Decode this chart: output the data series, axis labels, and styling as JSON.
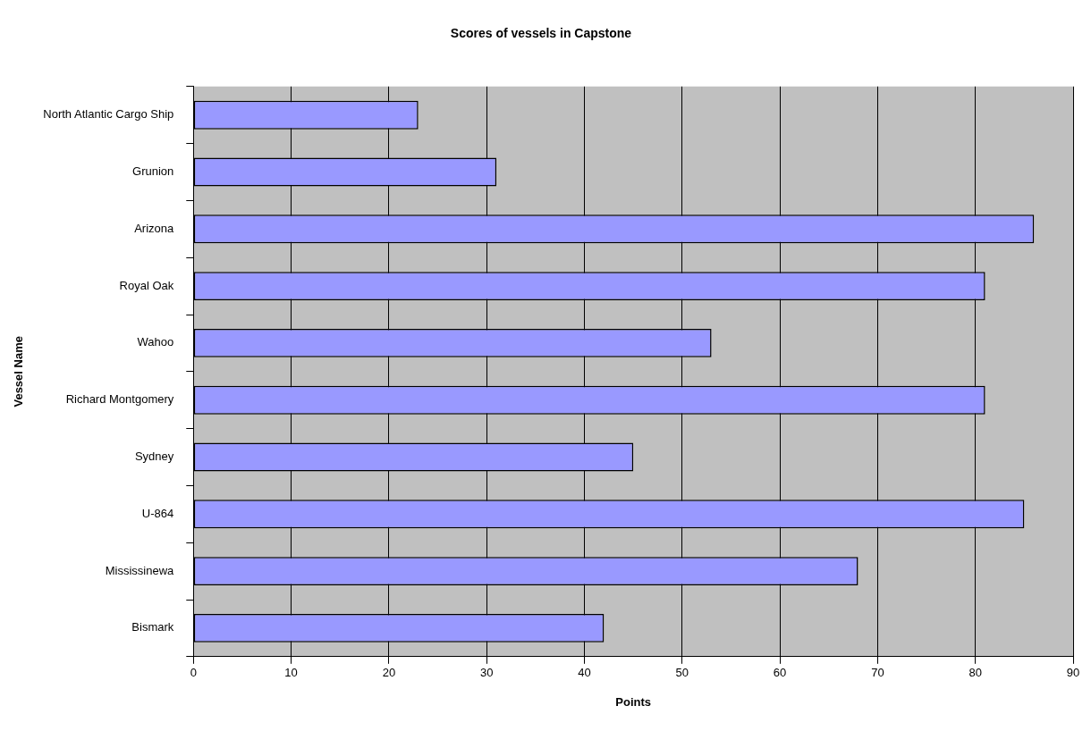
{
  "chart_data": {
    "type": "bar",
    "orientation": "horizontal",
    "title": "Scores of vessels in Capstone",
    "xlabel": "Points",
    "ylabel": "Vessel Name",
    "categories": [
      "North Atlantic Cargo Ship",
      "Grunion",
      "Arizona",
      "Royal Oak",
      "Wahoo",
      "Richard Montgomery",
      "Sydney",
      "U-864",
      "Mississinewa",
      "Bismark"
    ],
    "values": [
      23,
      31,
      86,
      81,
      53,
      81,
      45,
      85,
      68,
      42
    ],
    "color": "#9999ff",
    "xlim": [
      0,
      90
    ],
    "xticks": [
      0,
      10,
      20,
      30,
      40,
      50,
      60,
      70,
      80,
      90
    ],
    "grid": "x",
    "legend": false
  }
}
